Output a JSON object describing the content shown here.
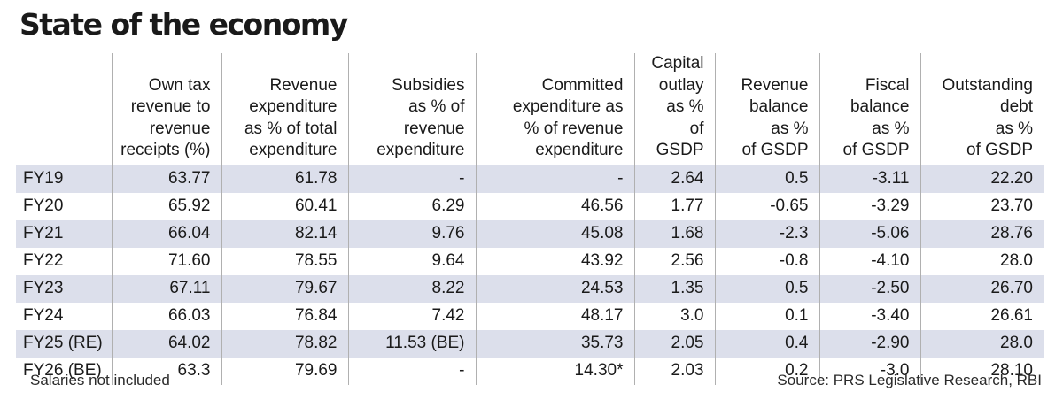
{
  "title": "State of the economy",
  "chart_data": {
    "type": "table",
    "title": "State of the economy",
    "columns": [
      "Own tax revenue to revenue receipts (%)",
      "Revenue expenditure as % of total expenditure",
      "Subsidies as % of revenue expenditure",
      "Committed expenditure as % of revenue expenditure",
      "Capital outlay as % of GSDP",
      "Revenue balance as % of GSDP",
      "Fiscal balance as % of GSDP",
      "Outstanding debt as % of GSDP"
    ],
    "headers": [
      [
        "Own tax",
        "revenue to",
        "revenue",
        "receipts (%)"
      ],
      [
        "Revenue",
        "expenditure",
        "as % of total",
        "expenditure"
      ],
      [
        "Subsidies",
        "as % of",
        "revenue",
        "expenditure"
      ],
      [
        "Committed",
        "expenditure as",
        "% of revenue",
        "expenditure"
      ],
      [
        "Capital",
        "outlay",
        "as %",
        "of GSDP"
      ],
      [
        "Revenue",
        "balance",
        "as %",
        "of GSDP"
      ],
      [
        "Fiscal",
        "balance",
        "as %",
        "of GSDP"
      ],
      [
        "Outstanding",
        "debt",
        "as %",
        "of GSDP"
      ]
    ],
    "rows": [
      {
        "year": "FY19",
        "values": [
          "63.77",
          "61.78",
          "-",
          "-",
          "2.64",
          "0.5",
          "-3.11",
          "22.20"
        ]
      },
      {
        "year": "FY20",
        "values": [
          "65.92",
          "60.41",
          "6.29",
          "46.56",
          "1.77",
          "-0.65",
          "-3.29",
          "23.70"
        ]
      },
      {
        "year": "FY21",
        "values": [
          "66.04",
          "82.14",
          "9.76",
          "45.08",
          "1.68",
          "-2.3",
          "-5.06",
          "28.76"
        ]
      },
      {
        "year": "FY22",
        "values": [
          "71.60",
          "78.55",
          "9.64",
          "43.92",
          "2.56",
          "-0.8",
          "-4.10",
          "28.0"
        ]
      },
      {
        "year": "FY23",
        "values": [
          "67.11",
          "79.67",
          "8.22",
          "24.53",
          "1.35",
          "0.5",
          "-2.50",
          "26.70"
        ]
      },
      {
        "year": "FY24",
        "values": [
          "66.03",
          "76.84",
          "7.42",
          "48.17",
          "3.0",
          "0.1",
          "-3.40",
          "26.61"
        ]
      },
      {
        "year": "FY25 (RE)",
        "values": [
          "64.02",
          "78.82",
          "11.53 (BE)",
          "35.73",
          "2.05",
          "0.4",
          "-2.90",
          "28.0"
        ]
      },
      {
        "year": "FY26 (BE)",
        "values": [
          "63.3",
          "79.69",
          "-",
          "14.30*",
          "2.03",
          "0.2",
          "-3.0",
          "28.10"
        ]
      }
    ],
    "shaded_rows": "alternate, starting with first row",
    "shade_color": "#dcdfeb"
  },
  "footnote": "Salaries not included",
  "source": "Source: PRS Legislative Research, RBI"
}
